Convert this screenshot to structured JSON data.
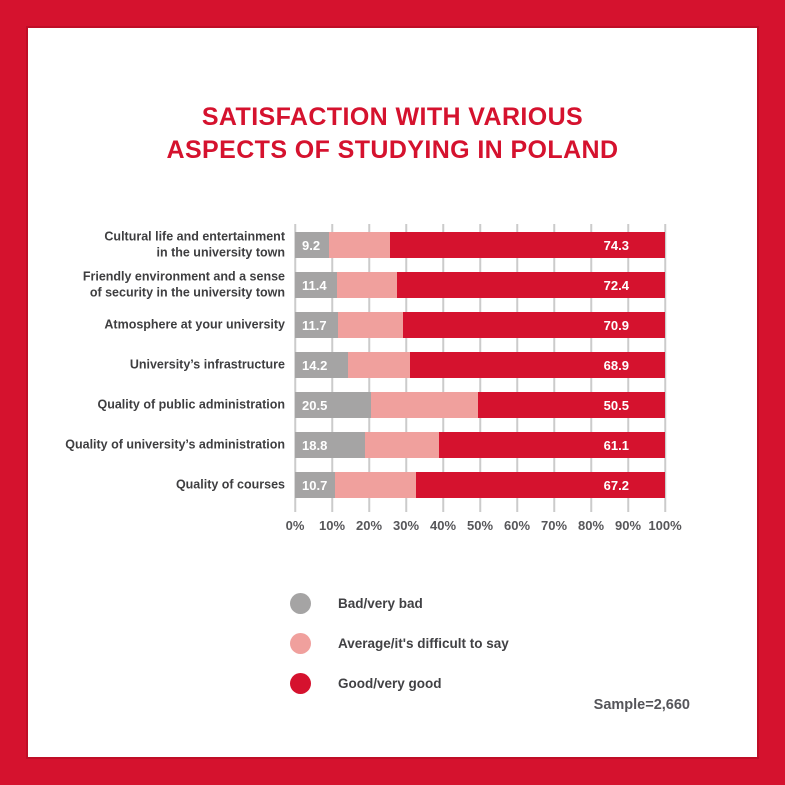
{
  "title": {
    "lines": [
      "SATISFACTION WITH VARIOUS",
      "ASPECTS OF STUDYING IN POLAND"
    ]
  },
  "colors": {
    "accent_red": "#d5122e",
    "bar_gray": "#a5a4a4",
    "bar_pink": "#f0a09d",
    "gridline": "#cbcbcb",
    "label_dark": "#3e3e40",
    "axis_text": "#57575a"
  },
  "chart_data": {
    "type": "bar",
    "orientation": "horizontal",
    "stacked": true,
    "title": "Satisfaction with various aspects of studying in Poland",
    "x_axis": {
      "range": [
        0,
        100
      ],
      "ticks": [
        "0%",
        "10%",
        "20%",
        "30%",
        "40%",
        "50%",
        "60%",
        "70%",
        "80%",
        "90%",
        "100%"
      ],
      "grid": true
    },
    "categories": [
      [
        "Cultural life and entertainment",
        "in the university town"
      ],
      [
        "Friendly environment and a sense",
        "of security in the university town"
      ],
      [
        "Atmosphere at your university"
      ],
      [
        "University’s infrastructure"
      ],
      [
        "Quality of public administration"
      ],
      [
        "Quality of university’s administration"
      ],
      [
        "Quality of courses"
      ]
    ],
    "series": [
      {
        "name": "Bad/very bad",
        "color": "#a5a4a4",
        "labels_shown": true,
        "values": [
          9.2,
          11.4,
          11.7,
          14.2,
          20.5,
          18.8,
          10.7
        ]
      },
      {
        "name": "Average/it's difficult to say",
        "color": "#f0a09d",
        "labels_shown": false,
        "values": [
          16.5,
          16.2,
          17.4,
          16.9,
          29.0,
          20.1,
          22.1
        ]
      },
      {
        "name": "Good/very good",
        "color": "#d5122e",
        "labels_shown": true,
        "values": [
          74.3,
          72.4,
          70.9,
          68.9,
          50.5,
          61.1,
          67.2
        ]
      }
    ],
    "legend_position": "bottom-left"
  },
  "legend": {
    "items": [
      {
        "label": "Bad/very bad",
        "color": "#a5a4a4"
      },
      {
        "label": "Average/it's difficult to say",
        "color": "#f0a09d"
      },
      {
        "label": "Good/very good",
        "color": "#d5122e"
      }
    ]
  },
  "footer": {
    "sample_label": "Sample=2,660"
  }
}
